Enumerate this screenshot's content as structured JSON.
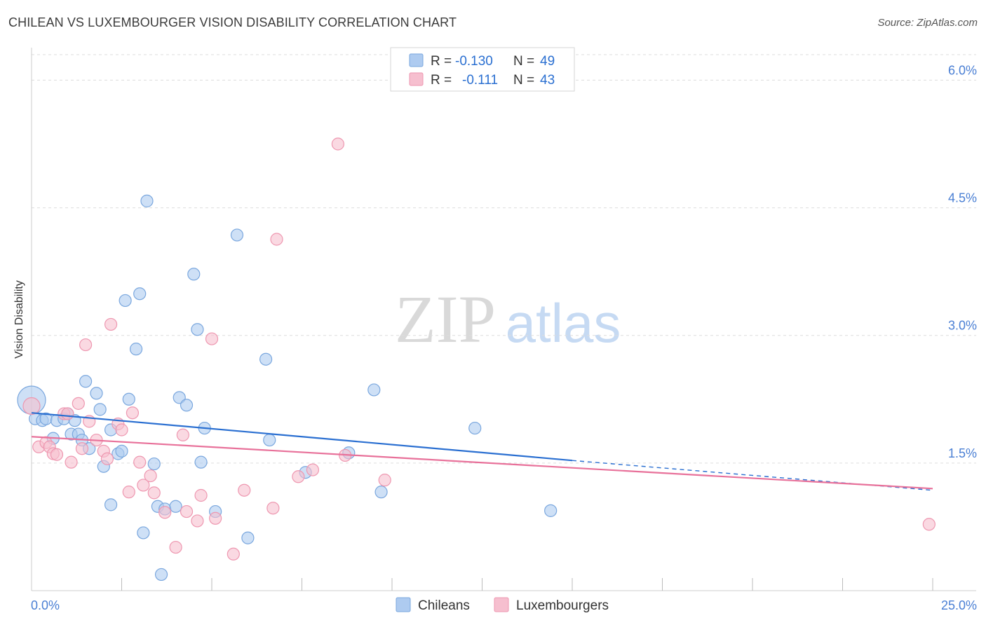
{
  "header": {
    "title": "CHILEAN VS LUXEMBOURGER VISION DISABILITY CORRELATION CHART",
    "source": "Source: ZipAtlas.com"
  },
  "watermark": {
    "part1": "ZIP",
    "part2": "atlas"
  },
  "colors": {
    "chileans_fill": "#aecbf0",
    "chileans_stroke": "#7aa7de",
    "chileans_line": "#2a6fd1",
    "lux_fill": "#f6bfcf",
    "lux_stroke": "#ee97b0",
    "lux_line": "#e8719a",
    "tick_label": "#4a7fd4",
    "grid": "#dddddd"
  },
  "legend_top": [
    {
      "r_label": "R =",
      "r_value": "-0.130",
      "n_label": "N =",
      "n_value": "49"
    },
    {
      "r_label": "R =",
      "r_value": "-0.111",
      "n_label": "N =",
      "n_value": "43"
    }
  ],
  "chart_data": {
    "type": "scatter",
    "title": "CHILEAN VS LUXEMBOURGER VISION DISABILITY CORRELATION CHART",
    "xlabel": "",
    "ylabel": "Vision Disability",
    "xlim": [
      0,
      25
    ],
    "ylim": [
      0,
      6.3
    ],
    "x_tick_labels": [
      "0.0%",
      "25.0%"
    ],
    "y_ticks": [
      1.5,
      3.0,
      4.5,
      6.0
    ],
    "y_tick_labels": [
      "1.5%",
      "3.0%",
      "4.5%",
      "6.0%"
    ],
    "grid": true,
    "legend_position": "bottom-center",
    "series": [
      {
        "name": "Chileans",
        "r": -0.13,
        "n": 49,
        "trend": {
          "x0": 0,
          "y0": 2.09,
          "x1": 15,
          "y1": 1.53,
          "dash_to_x": 25,
          "dash_to_y": 1.18
        },
        "points": [
          [
            0.0,
            2.24
          ],
          [
            0.1,
            2.02
          ],
          [
            0.3,
            2.0
          ],
          [
            0.4,
            2.02
          ],
          [
            0.6,
            1.79
          ],
          [
            0.7,
            2.0
          ],
          [
            0.9,
            2.02
          ],
          [
            1.0,
            2.08
          ],
          [
            1.1,
            1.84
          ],
          [
            1.2,
            2.0
          ],
          [
            1.3,
            1.84
          ],
          [
            1.4,
            1.77
          ],
          [
            1.5,
            2.46
          ],
          [
            1.6,
            1.67
          ],
          [
            1.8,
            2.32
          ],
          [
            1.9,
            2.13
          ],
          [
            2.0,
            1.46
          ],
          [
            2.2,
            1.01
          ],
          [
            2.2,
            1.89
          ],
          [
            2.4,
            1.61
          ],
          [
            2.5,
            1.64
          ],
          [
            2.6,
            3.41
          ],
          [
            2.7,
            2.25
          ],
          [
            2.9,
            2.84
          ],
          [
            3.0,
            3.49
          ],
          [
            3.1,
            0.68
          ],
          [
            3.2,
            4.58
          ],
          [
            3.4,
            1.49
          ],
          [
            3.5,
            0.99
          ],
          [
            3.6,
            0.19
          ],
          [
            3.7,
            0.96
          ],
          [
            4.0,
            0.99
          ],
          [
            4.1,
            2.27
          ],
          [
            4.3,
            2.18
          ],
          [
            4.5,
            3.72
          ],
          [
            4.6,
            3.07
          ],
          [
            4.7,
            1.51
          ],
          [
            4.8,
            1.91
          ],
          [
            5.1,
            0.93
          ],
          [
            5.7,
            4.18
          ],
          [
            6.0,
            0.62
          ],
          [
            6.5,
            2.72
          ],
          [
            6.6,
            1.77
          ],
          [
            7.6,
            1.39
          ],
          [
            8.8,
            1.62
          ],
          [
            9.5,
            2.36
          ],
          [
            9.7,
            1.16
          ],
          [
            12.3,
            1.91
          ],
          [
            14.4,
            0.94
          ]
        ]
      },
      {
        "name": "Luxembourgers",
        "r": -0.111,
        "n": 43,
        "trend": {
          "x0": 0,
          "y0": 1.81,
          "x1": 25,
          "y1": 1.2
        },
        "points": [
          [
            0.0,
            2.17
          ],
          [
            0.2,
            1.69
          ],
          [
            0.4,
            1.74
          ],
          [
            0.5,
            1.69
          ],
          [
            0.6,
            1.61
          ],
          [
            0.7,
            1.6
          ],
          [
            0.9,
            2.08
          ],
          [
            1.0,
            2.08
          ],
          [
            1.1,
            1.51
          ],
          [
            1.3,
            2.2
          ],
          [
            1.4,
            1.67
          ],
          [
            1.5,
            2.89
          ],
          [
            1.6,
            1.99
          ],
          [
            1.8,
            1.77
          ],
          [
            2.0,
            1.64
          ],
          [
            2.1,
            1.55
          ],
          [
            2.2,
            3.13
          ],
          [
            2.4,
            1.96
          ],
          [
            2.5,
            1.89
          ],
          [
            2.7,
            1.16
          ],
          [
            2.8,
            2.09
          ],
          [
            3.0,
            1.51
          ],
          [
            3.1,
            1.24
          ],
          [
            3.3,
            1.35
          ],
          [
            3.4,
            1.15
          ],
          [
            3.7,
            0.92
          ],
          [
            4.0,
            0.51
          ],
          [
            4.2,
            1.83
          ],
          [
            4.3,
            0.93
          ],
          [
            4.6,
            0.82
          ],
          [
            4.7,
            1.12
          ],
          [
            5.0,
            2.96
          ],
          [
            5.1,
            0.85
          ],
          [
            5.6,
            0.43
          ],
          [
            5.9,
            1.18
          ],
          [
            6.7,
            0.97
          ],
          [
            6.8,
            4.13
          ],
          [
            7.4,
            1.34
          ],
          [
            7.8,
            1.42
          ],
          [
            8.5,
            5.25
          ],
          [
            8.7,
            1.59
          ],
          [
            9.8,
            1.3
          ],
          [
            24.9,
            0.78
          ]
        ]
      }
    ]
  },
  "legend_bottom": {
    "items": [
      "Chileans",
      "Luxembourgers"
    ]
  }
}
